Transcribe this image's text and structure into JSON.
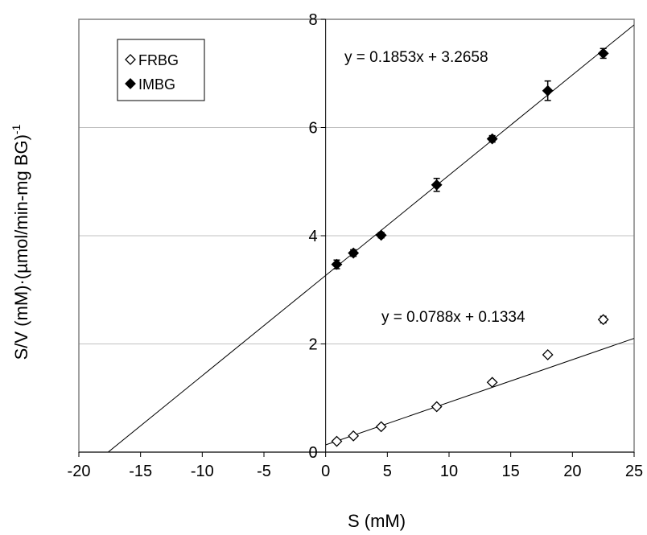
{
  "chart_data": {
    "type": "scatter",
    "xlabel": "S (mM)",
    "ylabel": "S/V (mM)·(µmol/min-mg BG)",
    "ylabel_superscript": "-1",
    "xlim": [
      -20,
      25
    ],
    "ylim": [
      0,
      8
    ],
    "xticks": [
      -20,
      -15,
      -10,
      -5,
      0,
      5,
      10,
      15,
      20,
      25
    ],
    "yticks": [
      0,
      2,
      4,
      6,
      8
    ],
    "grid": "horizontal",
    "legend_position": "top-left",
    "series": [
      {
        "name": "FRBG",
        "marker": "open-diamond",
        "x": [
          0.9,
          2.25,
          4.5,
          9,
          13.5,
          18,
          22.5
        ],
        "y": [
          0.2,
          0.3,
          0.47,
          0.84,
          1.29,
          1.8,
          2.45
        ],
        "err": [
          0,
          0,
          0,
          0,
          0,
          0,
          0.06
        ],
        "fit": {
          "slope": 0.0788,
          "intercept": 0.1334,
          "x_range": [
            0,
            25
          ],
          "label": "y = 0.0788x + 0.1334"
        }
      },
      {
        "name": "IMBG",
        "marker": "filled-diamond",
        "x": [
          0.9,
          2.25,
          4.5,
          9,
          13.5,
          18,
          22.5
        ],
        "y": [
          3.47,
          3.68,
          4.01,
          4.94,
          5.79,
          6.68,
          7.37
        ],
        "err": [
          0.08,
          0.06,
          0.05,
          0.12,
          0.06,
          0.18,
          0.09
        ],
        "fit": {
          "slope": 0.1853,
          "intercept": 3.2658,
          "x_range": [
            -17.62,
            25
          ],
          "label": "y = 0.1853x + 3.2658"
        }
      }
    ]
  },
  "colors": {
    "axis": "#808080",
    "gridline": "#c0c0c0",
    "series": "#000000",
    "background": "#ffffff"
  }
}
